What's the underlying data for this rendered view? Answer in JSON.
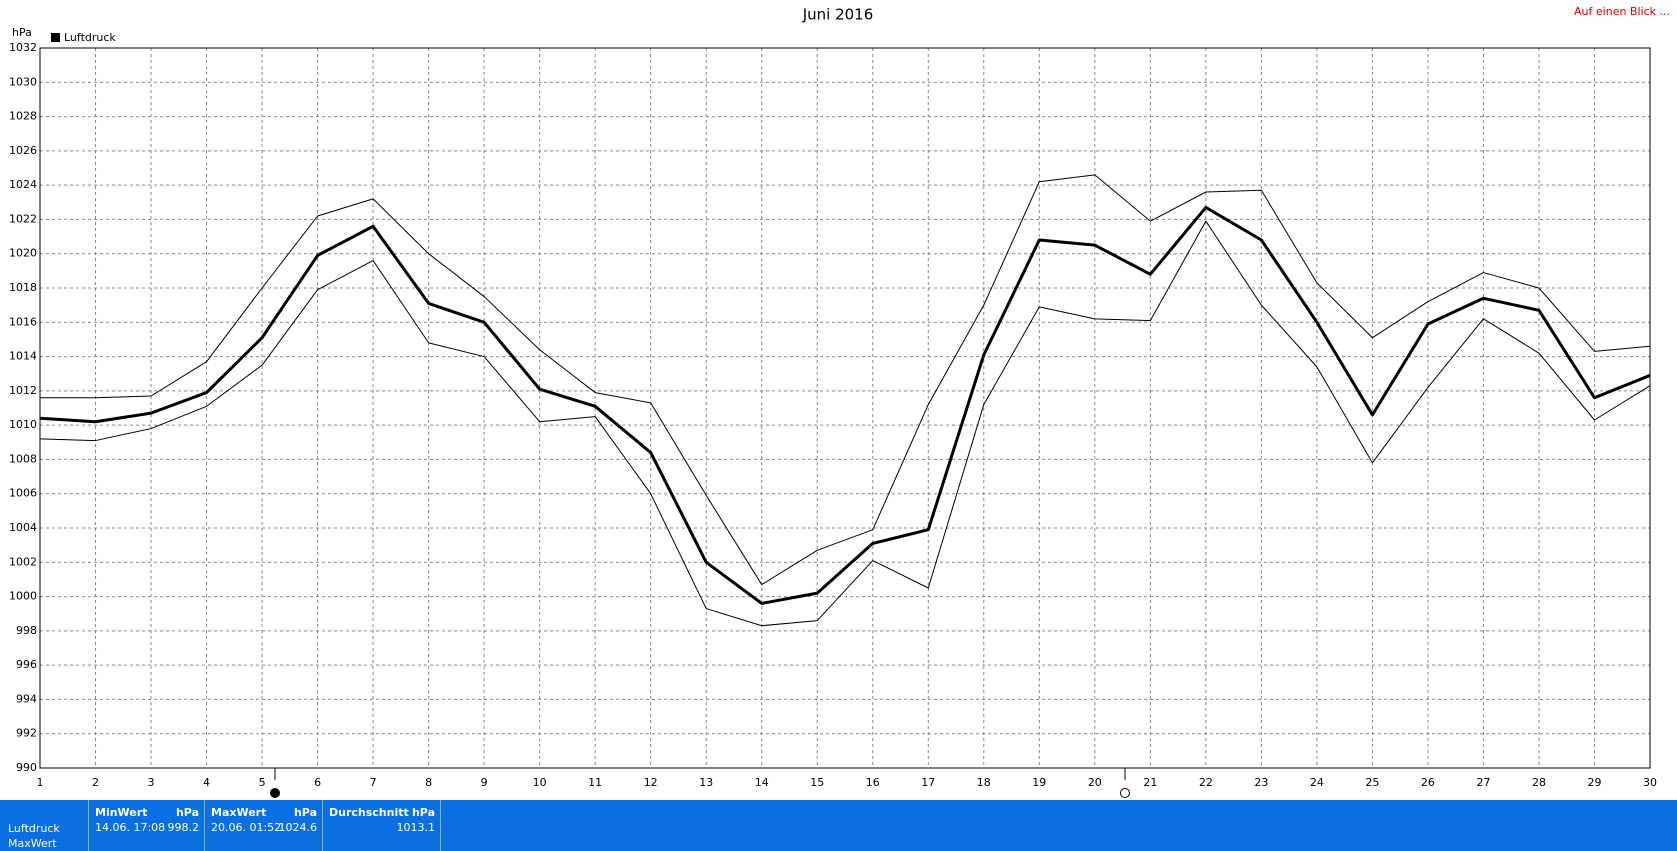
{
  "chart_data": {
    "type": "line",
    "title": "Juni 2016",
    "y_label": "hPa",
    "x": [
      1,
      2,
      3,
      4,
      5,
      6,
      7,
      8,
      9,
      10,
      11,
      12,
      13,
      14,
      15,
      16,
      17,
      18,
      19,
      20,
      21,
      22,
      23,
      24,
      25,
      26,
      27,
      28,
      29,
      30
    ],
    "xlim": [
      1,
      30
    ],
    "xticks": [
      1,
      2,
      3,
      4,
      5,
      6,
      7,
      8,
      9,
      10,
      11,
      12,
      13,
      14,
      15,
      16,
      17,
      18,
      19,
      20,
      21,
      22,
      23,
      24,
      25,
      26,
      27,
      28,
      29,
      30
    ],
    "ylim": [
      990,
      1032
    ],
    "yticks": [
      990,
      992,
      994,
      996,
      998,
      1000,
      1002,
      1004,
      1006,
      1008,
      1010,
      1012,
      1014,
      1016,
      1018,
      1020,
      1022,
      1024,
      1026,
      1028,
      1030,
      1032
    ],
    "grid": true,
    "legend": "top-left",
    "series": [
      {
        "name": "Luftdruck",
        "color": "#000000",
        "width": 3,
        "values": [
          1010.4,
          1010.2,
          1010.7,
          1011.9,
          1015.1,
          1019.9,
          1021.6,
          1017.1,
          1016.0,
          1012.1,
          1011.1,
          1008.4,
          1002.0,
          999.6,
          1000.2,
          1003.1,
          1003.9,
          1014.1,
          1020.8,
          1020.5,
          1018.8,
          1022.7,
          1020.8,
          1016.0,
          1010.6,
          1015.9,
          1017.4,
          1016.7,
          1011.6,
          1012.9
        ]
      },
      {
        "color": "#000000",
        "width": 1,
        "values": [
          1011.6,
          1011.6,
          1011.7,
          1013.7,
          1018.0,
          1022.2,
          1023.2,
          1020.0,
          1017.5,
          1014.4,
          1011.9,
          1011.3,
          1005.9,
          1000.7,
          1002.7,
          1003.9,
          1011.2,
          1017.0,
          1024.2,
          1024.6,
          1021.9,
          1023.6,
          1023.7,
          1018.3,
          1015.1,
          1017.2,
          1018.9,
          1018.0,
          1014.3,
          1014.6
        ]
      },
      {
        "color": "#000000",
        "width": 1,
        "values": [
          1009.2,
          1009.1,
          1009.8,
          1011.1,
          1013.5,
          1017.9,
          1019.6,
          1014.8,
          1014.0,
          1010.2,
          1010.5,
          1006.0,
          999.3,
          998.3,
          998.6,
          1002.1,
          1000.5,
          1011.2,
          1016.9,
          1016.2,
          1016.1,
          1021.9,
          1017.0,
          1013.4,
          1007.8,
          1012.2,
          1016.2,
          1014.2,
          1010.3,
          1012.3
        ]
      }
    ]
  },
  "link": "Auf einen Blick ...",
  "summary": {
    "row_labels": [
      "Luftdruck",
      "MaxWert"
    ],
    "columns": [
      {
        "header": "MinWert",
        "unit": "hPa",
        "time": "14.06.  17:08",
        "value": "998.2"
      },
      {
        "header": "MaxWert",
        "unit": "hPa",
        "time": "20.06.  01:52",
        "value": "1024.6"
      },
      {
        "header": "Durchschnitt",
        "unit": "hPa",
        "value": "1013.1"
      }
    ]
  }
}
